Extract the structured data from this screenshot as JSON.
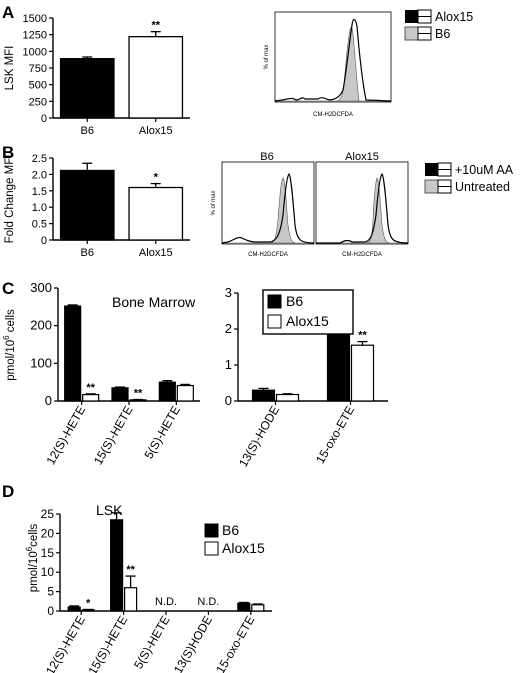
{
  "panels": {
    "A": "A",
    "B": "B",
    "C": "C",
    "D": "D"
  },
  "colors": {
    "black": "#000000",
    "white": "#ffffff",
    "gray_fill": "#c8c8c8"
  },
  "panel_A_hist": {
    "xlabel": "CM-H2DCFDA",
    "ylabel": "% of max",
    "legend": [
      "Alox15",
      "B6"
    ]
  },
  "panel_B_hist": {
    "xlabel": "CM-H2DCFDA",
    "ylabel": "% of max",
    "subpanels": [
      "B6",
      "Alox15"
    ],
    "legend": [
      "+10uM AA",
      "Untreated"
    ]
  },
  "chart_data": [
    {
      "panel": "A",
      "type": "bar",
      "categories": [
        "B6",
        "Alox15"
      ],
      "values": [
        890,
        1220
      ],
      "errors": [
        25,
        75
      ],
      "fills": [
        "#000000",
        "#ffffff"
      ],
      "significance": [
        "",
        "**"
      ],
      "ylabel": "LSK MFI",
      "ylim": [
        0,
        1500
      ],
      "yticks": [
        0,
        250,
        500,
        750,
        1000,
        1250,
        1500
      ]
    },
    {
      "panel": "B",
      "type": "bar",
      "categories": [
        "B6",
        "Alox15"
      ],
      "values": [
        2.12,
        1.6
      ],
      "errors": [
        0.22,
        0.12
      ],
      "fills": [
        "#000000",
        "#ffffff"
      ],
      "significance": [
        "",
        "*"
      ],
      "ylabel": "Fold Change MFI",
      "ylim": [
        0,
        2.5
      ],
      "yticks": [
        "0",
        "0.5",
        "1.0",
        "1.5",
        "2.0",
        "2.5"
      ]
    },
    {
      "panel": "C",
      "type": "bar",
      "subtitle": "Bone Marrow",
      "ylabel": "pmol/10^6 cells",
      "ylabel_main": "pmol/10",
      "ylabel_sup": "6",
      "ylabel_tail": " cells",
      "categories": [
        "12(S)-HETE",
        "15(S)-HETE",
        "5(S)-HETE"
      ],
      "series": [
        {
          "name": "B6",
          "values": [
            252,
            35,
            50
          ],
          "errors": [
            3,
            2,
            4
          ]
        },
        {
          "name": "Alox15",
          "values": [
            17,
            3,
            41
          ],
          "errors": [
            2,
            1,
            3
          ]
        }
      ],
      "significance": [
        "**",
        "**",
        ""
      ],
      "ylim": [
        0,
        300
      ],
      "yticks": [
        0,
        100,
        200,
        300
      ]
    },
    {
      "panel": "C",
      "type": "bar",
      "categories": [
        "13(S)-HODE",
        "15-oxo-ETE"
      ],
      "series": [
        {
          "name": "B6",
          "values": [
            0.3,
            2.55
          ],
          "errors": [
            0.05,
            0.03
          ]
        },
        {
          "name": "Alox15",
          "values": [
            0.18,
            1.55
          ],
          "errors": [
            0.02,
            0.1
          ]
        }
      ],
      "significance": [
        "",
        "**"
      ],
      "ylim": [
        0,
        3
      ],
      "yticks": [
        0,
        1,
        2,
        3
      ],
      "legend": [
        "B6",
        "Alox15"
      ]
    },
    {
      "panel": "D",
      "type": "bar",
      "subtitle": "LSK",
      "ylabel": "pmol/10^6 cells",
      "ylabel_main": "pmol/10",
      "ylabel_sup": "6",
      "ylabel_tail": "cells",
      "categories": [
        "12(S)-HETE",
        "15(S)-HETE",
        "5(S)-HETE",
        "13(S)HODE",
        "15-oxo-ETE"
      ],
      "series": [
        {
          "name": "B6",
          "values": [
            1.0,
            23.5,
            null,
            null,
            2.0
          ],
          "errors": [
            0.3,
            1.8,
            null,
            null,
            0.2
          ]
        },
        {
          "name": "Alox15",
          "values": [
            0.3,
            6.0,
            null,
            null,
            1.6
          ],
          "errors": [
            0.1,
            3.0,
            null,
            null,
            0.2
          ]
        }
      ],
      "significance": [
        "*",
        "**",
        "",
        "",
        ""
      ],
      "annotations": [
        "",
        "",
        "N.D.",
        "N.D.",
        ""
      ],
      "ylim": [
        0,
        25
      ],
      "yticks": [
        0,
        5,
        10,
        15,
        20,
        25
      ],
      "legend": [
        "B6",
        "Alox15"
      ]
    }
  ]
}
